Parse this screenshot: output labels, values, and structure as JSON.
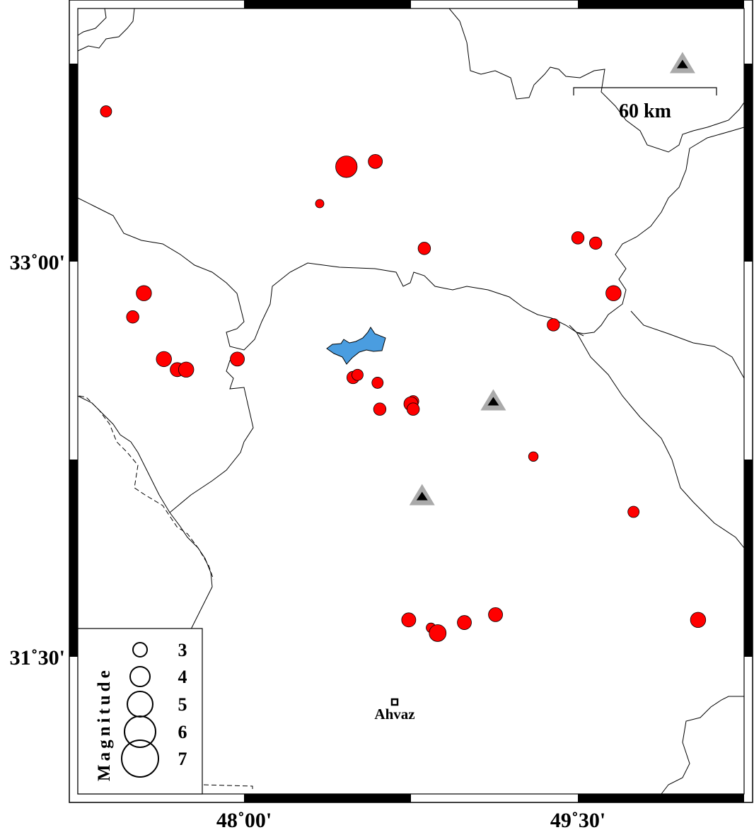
{
  "map": {
    "extent": {
      "lon": [
        47.23,
        50.23
      ],
      "lat": [
        30.93,
        33.98
      ]
    },
    "x_ticks": [
      {
        "lon": 48.0,
        "label": "48˚00'"
      },
      {
        "lon": 49.5,
        "label": "49˚30'"
      }
    ],
    "y_ticks": [
      {
        "lat": 33.0,
        "label": "33˚00'"
      },
      {
        "lat": 31.5,
        "label": "31˚30'"
      }
    ],
    "scale_bar": {
      "label": "60 km",
      "km": 60
    },
    "colors": {
      "event": "#ff0000",
      "lake": "#4a9de0",
      "station_outer": "#aaaaaa",
      "station_inner": "#000000"
    },
    "city": {
      "name": "Ahvaz",
      "lon": 48.68,
      "lat": 31.33,
      "icon": "square-marker-icon"
    },
    "stations": [
      {
        "lon": 49.97,
        "lat": 33.75
      },
      {
        "lon": 49.12,
        "lat": 32.47
      },
      {
        "lon": 48.8,
        "lat": 32.11
      }
    ],
    "events": [
      {
        "lon": 47.38,
        "lat": 33.57,
        "mag": 2.5
      },
      {
        "lon": 48.46,
        "lat": 33.36,
        "mag": 4.3
      },
      {
        "lon": 48.59,
        "lat": 33.38,
        "mag": 3.0
      },
      {
        "lon": 48.34,
        "lat": 33.22,
        "mag": 2.0
      },
      {
        "lon": 48.81,
        "lat": 33.05,
        "mag": 2.7
      },
      {
        "lon": 49.5,
        "lat": 33.09,
        "mag": 2.7
      },
      {
        "lon": 49.58,
        "lat": 33.07,
        "mag": 2.7
      },
      {
        "lon": 49.66,
        "lat": 32.88,
        "mag": 3.2
      },
      {
        "lon": 49.39,
        "lat": 32.76,
        "mag": 2.7
      },
      {
        "lon": 47.55,
        "lat": 32.88,
        "mag": 3.2
      },
      {
        "lon": 47.5,
        "lat": 32.79,
        "mag": 2.7
      },
      {
        "lon": 47.64,
        "lat": 32.63,
        "mag": 3.2
      },
      {
        "lon": 47.7,
        "lat": 32.59,
        "mag": 3.0
      },
      {
        "lon": 47.74,
        "lat": 32.59,
        "mag": 3.2
      },
      {
        "lon": 47.97,
        "lat": 32.63,
        "mag": 3.0
      },
      {
        "lon": 48.49,
        "lat": 32.56,
        "mag": 2.7
      },
      {
        "lon": 48.51,
        "lat": 32.57,
        "mag": 2.5
      },
      {
        "lon": 48.6,
        "lat": 32.54,
        "mag": 2.5
      },
      {
        "lon": 48.76,
        "lat": 32.47,
        "mag": 2.5
      },
      {
        "lon": 48.75,
        "lat": 32.46,
        "mag": 3.0
      },
      {
        "lon": 48.76,
        "lat": 32.44,
        "mag": 2.7
      },
      {
        "lon": 48.61,
        "lat": 32.44,
        "mag": 2.7
      },
      {
        "lon": 49.3,
        "lat": 32.26,
        "mag": 2.2
      },
      {
        "lon": 49.75,
        "lat": 32.05,
        "mag": 2.5
      },
      {
        "lon": 48.74,
        "lat": 31.64,
        "mag": 3.0
      },
      {
        "lon": 48.84,
        "lat": 31.61,
        "mag": 2.2
      },
      {
        "lon": 48.87,
        "lat": 31.59,
        "mag": 3.5
      },
      {
        "lon": 48.99,
        "lat": 31.63,
        "mag": 3.0
      },
      {
        "lon": 49.13,
        "lat": 31.66,
        "mag": 3.0
      },
      {
        "lon": 50.04,
        "lat": 31.64,
        "mag": 3.2
      }
    ]
  },
  "legend": {
    "title": "Magnitude",
    "items": [
      {
        "mag": 3,
        "label": "3"
      },
      {
        "mag": 4,
        "label": "4"
      },
      {
        "mag": 5,
        "label": "5"
      },
      {
        "mag": 6,
        "label": "6"
      },
      {
        "mag": 7,
        "label": "7"
      }
    ]
  }
}
